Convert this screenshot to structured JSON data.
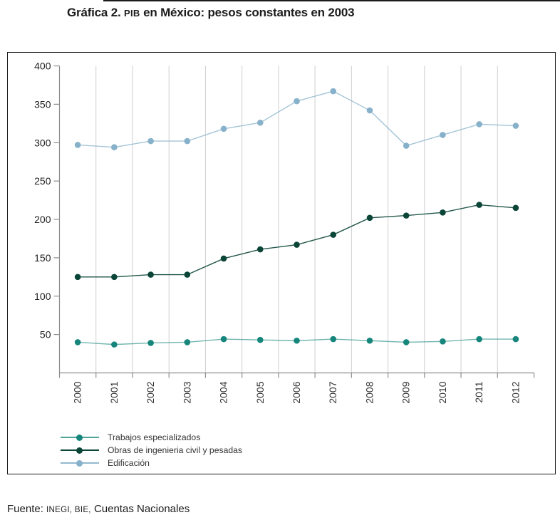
{
  "title": {
    "prefix": "Gráfica 2. ",
    "acronym": "PIB",
    "suffix": " en México: pesos constantes en 2003"
  },
  "source": {
    "prefix": "Fuente: ",
    "acronym": "INEGI, BIE,",
    "suffix": " Cuentas Nacionales"
  },
  "chart_data": {
    "type": "line",
    "title": "Gráfica 2. PIB en México: pesos constantes en 2003",
    "x": [
      "2000",
      "2001",
      "2002",
      "2003",
      "2004",
      "2005",
      "2006",
      "2007",
      "2008",
      "2009",
      "2010",
      "2011",
      "2012"
    ],
    "series": [
      {
        "name": "Trabajos especializados",
        "color": "#16857B",
        "line_opacity": 0.6,
        "values": [
          40,
          37,
          39,
          40,
          44,
          43,
          42,
          44,
          42,
          40,
          41,
          44,
          44
        ]
      },
      {
        "name": "Obras de ingenieria civil y pesadas",
        "color": "#0B4537",
        "line_opacity": 0.9,
        "values": [
          125,
          125,
          128,
          128,
          149,
          161,
          167,
          180,
          202,
          205,
          209,
          219,
          215
        ]
      },
      {
        "name": "Edificación",
        "color": "#87B1CA",
        "line_opacity": 0.75,
        "values": [
          297,
          294,
          302,
          302,
          318,
          326,
          354,
          367,
          342,
          296,
          310,
          324,
          322
        ]
      }
    ],
    "ylim": [
      0,
      400
    ],
    "ytick_step": 50,
    "ytick_labels": [
      "50",
      "100",
      "150",
      "200",
      "250",
      "300",
      "350",
      "400"
    ],
    "grid": "vertical",
    "legend_position": "bottom-left",
    "source": "Fuente: INEGI, BIE, Cuentas Nacionales",
    "colors": {
      "grid": "#cfcfcf",
      "axis": "#8e8e8e",
      "tick_label": "#222222",
      "frame": "#1b1b1b"
    }
  }
}
